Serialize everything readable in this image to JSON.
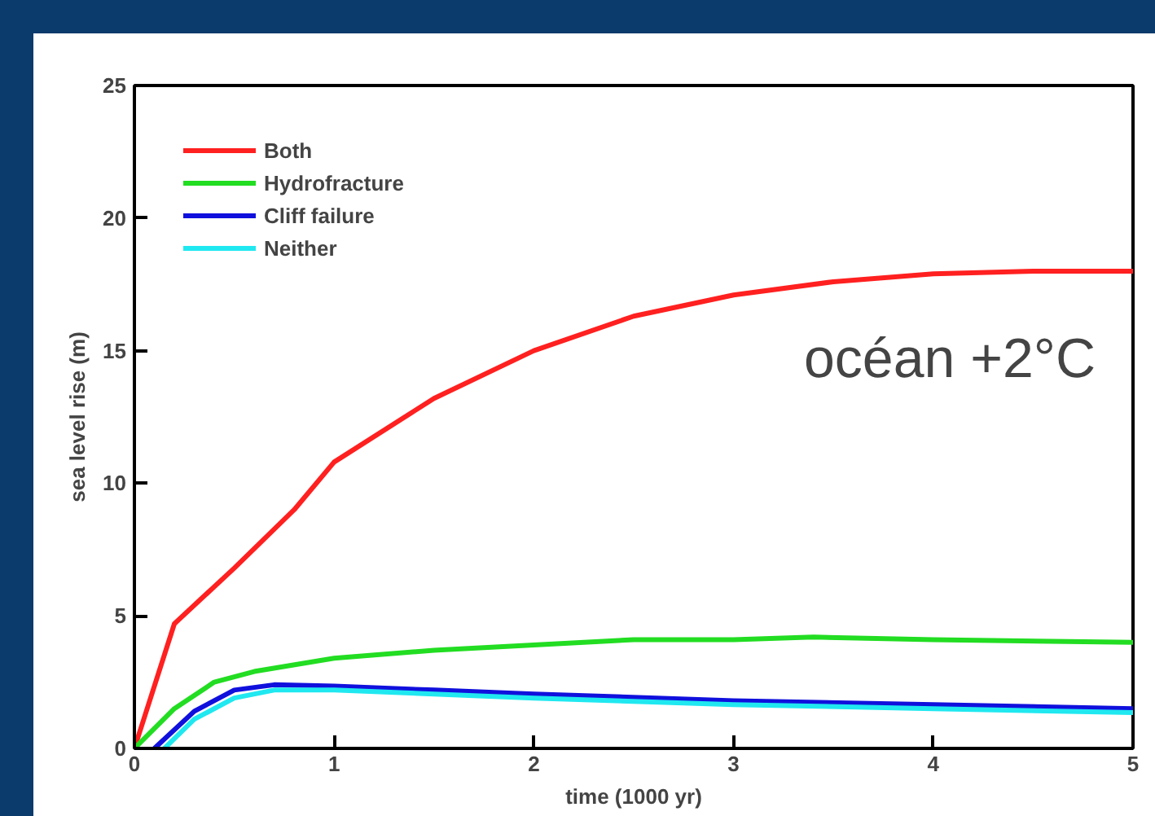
{
  "chart_data": {
    "type": "line",
    "xlabel": "time (1000 yr)",
    "ylabel": "sea level rise (m)",
    "xlim": [
      0,
      5
    ],
    "ylim": [
      0,
      25
    ],
    "xticks": [
      0,
      1,
      2,
      3,
      4,
      5
    ],
    "yticks": [
      0,
      5,
      10,
      15,
      20,
      25
    ],
    "grid": false,
    "legend": "top left",
    "marker": "none",
    "line_style": "solid",
    "annotations": [
      "océan +2°C"
    ],
    "series": [
      {
        "name": "Both",
        "color": "#ff2020",
        "x": [
          0,
          0.2,
          0.5,
          0.8,
          1.0,
          1.5,
          2.0,
          2.5,
          3.0,
          3.5,
          4.0,
          4.5,
          5.0
        ],
        "values": [
          0,
          4.7,
          6.8,
          9.0,
          10.8,
          13.2,
          15.0,
          16.3,
          17.1,
          17.6,
          17.9,
          18.0,
          18.0
        ]
      },
      {
        "name": "Hydrofracture",
        "color": "#22dd22",
        "x": [
          0,
          0.2,
          0.4,
          0.6,
          1.0,
          1.5,
          2.0,
          2.5,
          3.0,
          3.4,
          4.0,
          5.0
        ],
        "values": [
          0,
          1.5,
          2.5,
          2.9,
          3.4,
          3.7,
          3.9,
          4.1,
          4.1,
          4.2,
          4.1,
          4.0
        ]
      },
      {
        "name": "Cliff failure",
        "color": "#1010dd",
        "x": [
          0.1,
          0.3,
          0.5,
          0.7,
          1.0,
          1.5,
          2.0,
          3.0,
          4.0,
          5.0
        ],
        "values": [
          0,
          1.4,
          2.2,
          2.4,
          2.35,
          2.2,
          2.05,
          1.8,
          1.65,
          1.5
        ]
      },
      {
        "name": "Neither",
        "color": "#20e8f0",
        "x": [
          0.15,
          0.3,
          0.5,
          0.7,
          1.0,
          2.0,
          3.0,
          4.0,
          5.0
        ],
        "values": [
          0,
          1.1,
          1.9,
          2.2,
          2.2,
          1.9,
          1.65,
          1.5,
          1.35
        ]
      }
    ]
  }
}
